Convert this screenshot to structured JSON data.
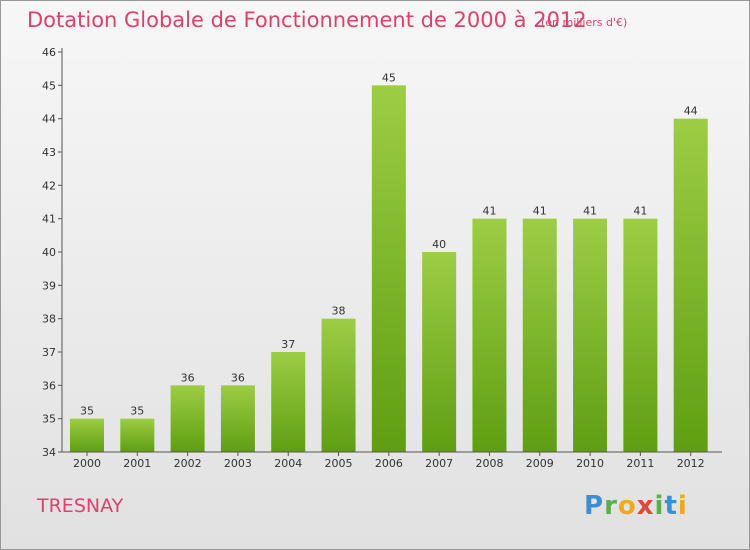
{
  "chart_data": {
    "type": "bar",
    "title": "Dotation Globale de Fonctionnement de 2000 à 2012",
    "subtitle": "(en milliers d'€)",
    "categories": [
      "2000",
      "2001",
      "2002",
      "2003",
      "2004",
      "2005",
      "2006",
      "2007",
      "2008",
      "2009",
      "2010",
      "2011",
      "2012"
    ],
    "values": [
      35,
      35,
      36,
      36,
      37,
      38,
      45,
      40,
      41,
      41,
      41,
      41,
      44
    ],
    "yticks": [
      "34",
      "35",
      "36",
      "37",
      "38",
      "39",
      "40",
      "41",
      "42",
      "43",
      "44",
      "45",
      "46"
    ],
    "ylim": [
      34,
      46
    ],
    "xlabel": "",
    "ylabel": "",
    "grid": false,
    "bar_color_top": "#9ccd45",
    "bar_color_bottom": "#5f9e12"
  },
  "commune": "TRESNAY",
  "logo": {
    "letters": [
      "P",
      "r",
      "o",
      "x",
      "i",
      "t",
      "i"
    ],
    "colors": [
      "#3a8fd6",
      "#58b04a",
      "#f0a81c",
      "#e2473a",
      "#58b04a",
      "#3a8fd6",
      "#f0a81c"
    ]
  }
}
